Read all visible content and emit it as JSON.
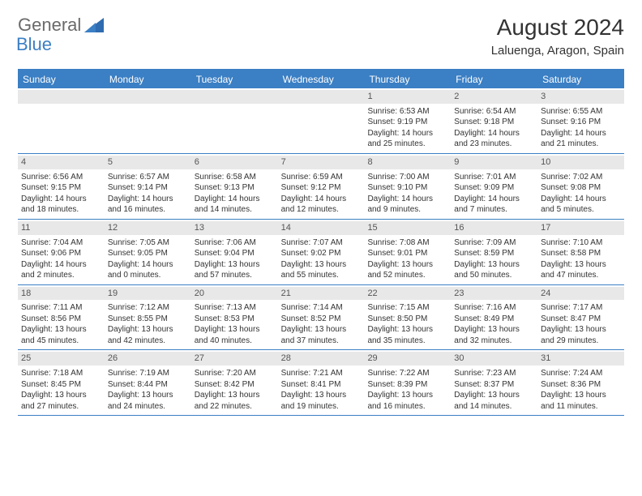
{
  "logo": {
    "general": "General",
    "blue": "Blue"
  },
  "title": "August 2024",
  "location": "Laluenga, Aragon, Spain",
  "colors": {
    "accent": "#3b7fc4",
    "gray_bar": "#e8e8e8",
    "text": "#333333",
    "logo_gray": "#6a6a6a"
  },
  "day_headers": [
    "Sunday",
    "Monday",
    "Tuesday",
    "Wednesday",
    "Thursday",
    "Friday",
    "Saturday"
  ],
  "weeks": [
    [
      {
        "date": "",
        "sunrise": "",
        "sunset": "",
        "day1": "",
        "day2": ""
      },
      {
        "date": "",
        "sunrise": "",
        "sunset": "",
        "day1": "",
        "day2": ""
      },
      {
        "date": "",
        "sunrise": "",
        "sunset": "",
        "day1": "",
        "day2": ""
      },
      {
        "date": "",
        "sunrise": "",
        "sunset": "",
        "day1": "",
        "day2": ""
      },
      {
        "date": "1",
        "sunrise": "Sunrise: 6:53 AM",
        "sunset": "Sunset: 9:19 PM",
        "day1": "Daylight: 14 hours",
        "day2": "and 25 minutes."
      },
      {
        "date": "2",
        "sunrise": "Sunrise: 6:54 AM",
        "sunset": "Sunset: 9:18 PM",
        "day1": "Daylight: 14 hours",
        "day2": "and 23 minutes."
      },
      {
        "date": "3",
        "sunrise": "Sunrise: 6:55 AM",
        "sunset": "Sunset: 9:16 PM",
        "day1": "Daylight: 14 hours",
        "day2": "and 21 minutes."
      }
    ],
    [
      {
        "date": "4",
        "sunrise": "Sunrise: 6:56 AM",
        "sunset": "Sunset: 9:15 PM",
        "day1": "Daylight: 14 hours",
        "day2": "and 18 minutes."
      },
      {
        "date": "5",
        "sunrise": "Sunrise: 6:57 AM",
        "sunset": "Sunset: 9:14 PM",
        "day1": "Daylight: 14 hours",
        "day2": "and 16 minutes."
      },
      {
        "date": "6",
        "sunrise": "Sunrise: 6:58 AM",
        "sunset": "Sunset: 9:13 PM",
        "day1": "Daylight: 14 hours",
        "day2": "and 14 minutes."
      },
      {
        "date": "7",
        "sunrise": "Sunrise: 6:59 AM",
        "sunset": "Sunset: 9:12 PM",
        "day1": "Daylight: 14 hours",
        "day2": "and 12 minutes."
      },
      {
        "date": "8",
        "sunrise": "Sunrise: 7:00 AM",
        "sunset": "Sunset: 9:10 PM",
        "day1": "Daylight: 14 hours",
        "day2": "and 9 minutes."
      },
      {
        "date": "9",
        "sunrise": "Sunrise: 7:01 AM",
        "sunset": "Sunset: 9:09 PM",
        "day1": "Daylight: 14 hours",
        "day2": "and 7 minutes."
      },
      {
        "date": "10",
        "sunrise": "Sunrise: 7:02 AM",
        "sunset": "Sunset: 9:08 PM",
        "day1": "Daylight: 14 hours",
        "day2": "and 5 minutes."
      }
    ],
    [
      {
        "date": "11",
        "sunrise": "Sunrise: 7:04 AM",
        "sunset": "Sunset: 9:06 PM",
        "day1": "Daylight: 14 hours",
        "day2": "and 2 minutes."
      },
      {
        "date": "12",
        "sunrise": "Sunrise: 7:05 AM",
        "sunset": "Sunset: 9:05 PM",
        "day1": "Daylight: 14 hours",
        "day2": "and 0 minutes."
      },
      {
        "date": "13",
        "sunrise": "Sunrise: 7:06 AM",
        "sunset": "Sunset: 9:04 PM",
        "day1": "Daylight: 13 hours",
        "day2": "and 57 minutes."
      },
      {
        "date": "14",
        "sunrise": "Sunrise: 7:07 AM",
        "sunset": "Sunset: 9:02 PM",
        "day1": "Daylight: 13 hours",
        "day2": "and 55 minutes."
      },
      {
        "date": "15",
        "sunrise": "Sunrise: 7:08 AM",
        "sunset": "Sunset: 9:01 PM",
        "day1": "Daylight: 13 hours",
        "day2": "and 52 minutes."
      },
      {
        "date": "16",
        "sunrise": "Sunrise: 7:09 AM",
        "sunset": "Sunset: 8:59 PM",
        "day1": "Daylight: 13 hours",
        "day2": "and 50 minutes."
      },
      {
        "date": "17",
        "sunrise": "Sunrise: 7:10 AM",
        "sunset": "Sunset: 8:58 PM",
        "day1": "Daylight: 13 hours",
        "day2": "and 47 minutes."
      }
    ],
    [
      {
        "date": "18",
        "sunrise": "Sunrise: 7:11 AM",
        "sunset": "Sunset: 8:56 PM",
        "day1": "Daylight: 13 hours",
        "day2": "and 45 minutes."
      },
      {
        "date": "19",
        "sunrise": "Sunrise: 7:12 AM",
        "sunset": "Sunset: 8:55 PM",
        "day1": "Daylight: 13 hours",
        "day2": "and 42 minutes."
      },
      {
        "date": "20",
        "sunrise": "Sunrise: 7:13 AM",
        "sunset": "Sunset: 8:53 PM",
        "day1": "Daylight: 13 hours",
        "day2": "and 40 minutes."
      },
      {
        "date": "21",
        "sunrise": "Sunrise: 7:14 AM",
        "sunset": "Sunset: 8:52 PM",
        "day1": "Daylight: 13 hours",
        "day2": "and 37 minutes."
      },
      {
        "date": "22",
        "sunrise": "Sunrise: 7:15 AM",
        "sunset": "Sunset: 8:50 PM",
        "day1": "Daylight: 13 hours",
        "day2": "and 35 minutes."
      },
      {
        "date": "23",
        "sunrise": "Sunrise: 7:16 AM",
        "sunset": "Sunset: 8:49 PM",
        "day1": "Daylight: 13 hours",
        "day2": "and 32 minutes."
      },
      {
        "date": "24",
        "sunrise": "Sunrise: 7:17 AM",
        "sunset": "Sunset: 8:47 PM",
        "day1": "Daylight: 13 hours",
        "day2": "and 29 minutes."
      }
    ],
    [
      {
        "date": "25",
        "sunrise": "Sunrise: 7:18 AM",
        "sunset": "Sunset: 8:45 PM",
        "day1": "Daylight: 13 hours",
        "day2": "and 27 minutes."
      },
      {
        "date": "26",
        "sunrise": "Sunrise: 7:19 AM",
        "sunset": "Sunset: 8:44 PM",
        "day1": "Daylight: 13 hours",
        "day2": "and 24 minutes."
      },
      {
        "date": "27",
        "sunrise": "Sunrise: 7:20 AM",
        "sunset": "Sunset: 8:42 PM",
        "day1": "Daylight: 13 hours",
        "day2": "and 22 minutes."
      },
      {
        "date": "28",
        "sunrise": "Sunrise: 7:21 AM",
        "sunset": "Sunset: 8:41 PM",
        "day1": "Daylight: 13 hours",
        "day2": "and 19 minutes."
      },
      {
        "date": "29",
        "sunrise": "Sunrise: 7:22 AM",
        "sunset": "Sunset: 8:39 PM",
        "day1": "Daylight: 13 hours",
        "day2": "and 16 minutes."
      },
      {
        "date": "30",
        "sunrise": "Sunrise: 7:23 AM",
        "sunset": "Sunset: 8:37 PM",
        "day1": "Daylight: 13 hours",
        "day2": "and 14 minutes."
      },
      {
        "date": "31",
        "sunrise": "Sunrise: 7:24 AM",
        "sunset": "Sunset: 8:36 PM",
        "day1": "Daylight: 13 hours",
        "day2": "and 11 minutes."
      }
    ]
  ]
}
